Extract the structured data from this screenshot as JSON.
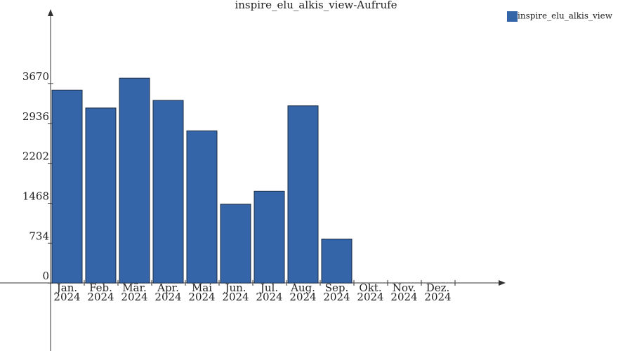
{
  "chart_data": {
    "type": "bar",
    "title": "inspire_elu_alkis_view-Aufrufe",
    "categories": [
      [
        "Jan.",
        "2024"
      ],
      [
        "Feb.",
        "2024"
      ],
      [
        "Mär.",
        "2024"
      ],
      [
        "Apr.",
        "2024"
      ],
      [
        "Mai",
        "2024"
      ],
      [
        "Jun.",
        "2024"
      ],
      [
        "Jul.",
        "2024"
      ],
      [
        "Aug.",
        "2024"
      ],
      [
        "Sep.",
        "2024"
      ],
      [
        "Okt.",
        "2024"
      ],
      [
        "Nov.",
        "2024"
      ],
      [
        "Dez.",
        "2024"
      ]
    ],
    "series": [
      {
        "name": "inspire_elu_alkis_view",
        "color": "#3465a8",
        "values": [
          3550,
          3220,
          3770,
          3360,
          2800,
          1450,
          1690,
          3260,
          810,
          0,
          0,
          0
        ]
      }
    ],
    "ylim": [
      -1250,
      5000
    ],
    "yticks": [
      0,
      734,
      1468,
      2202,
      2936,
      3670
    ],
    "legend": "top-right"
  }
}
